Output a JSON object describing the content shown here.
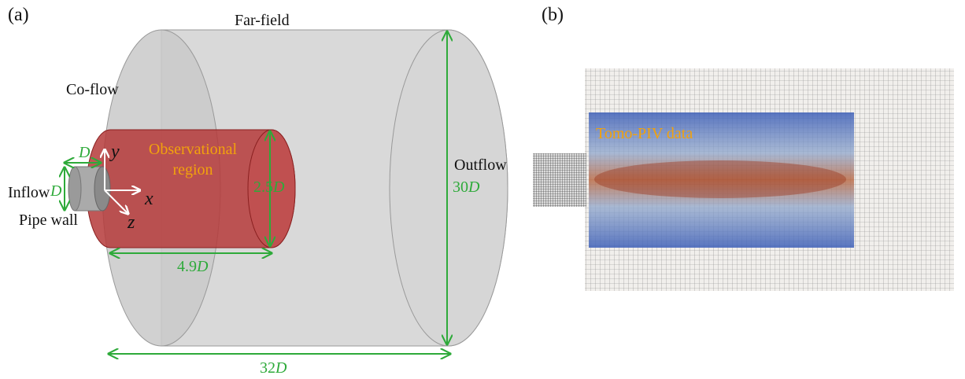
{
  "panel_a": {
    "label": "(a)",
    "far_field": "Far-field",
    "co_flow": "Co-flow",
    "observational_region": [
      "Observational",
      "region"
    ],
    "inflow": "Inflow",
    "outflow": "Outflow",
    "pipe_wall": "Pipe wall",
    "axes": {
      "x": "x",
      "y": "y",
      "z": "z"
    },
    "dimensions": {
      "pipe_length": "D",
      "pipe_diameter": "D",
      "region_diameter": {
        "number": "2.5",
        "unit": "D"
      },
      "domain_diameter": {
        "number": "30",
        "unit": "D"
      },
      "region_length": {
        "number": "4.9",
        "unit": "D"
      },
      "domain_length": {
        "number": "32",
        "unit": "D"
      }
    }
  },
  "panel_b": {
    "label": "(b)",
    "overlay": "Tomo-PIV data"
  }
}
